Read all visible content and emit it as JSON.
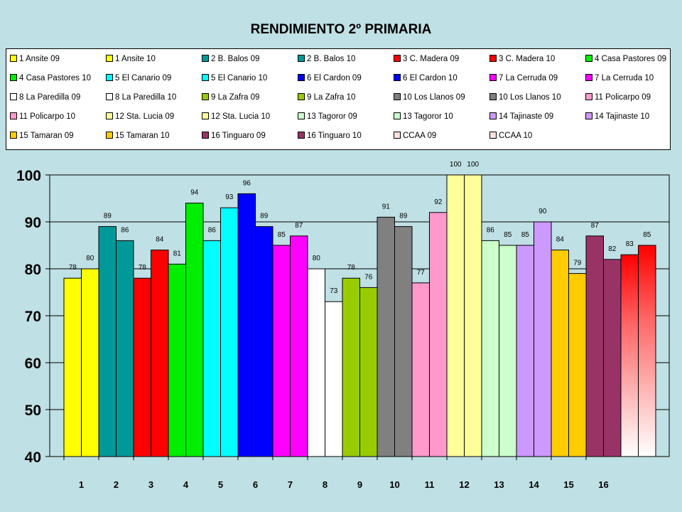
{
  "chart_data": {
    "type": "bar",
    "title": "RENDIMIENTO 2º PRIMARIA",
    "xlabel": "",
    "ylabel": "",
    "ylim": [
      40,
      100
    ],
    "yticks": [
      40,
      50,
      60,
      70,
      80,
      90,
      100
    ],
    "grid": true,
    "legend_position": "top",
    "categories": [
      "1",
      "2",
      "3",
      "4",
      "5",
      "6",
      "7",
      "8",
      "9",
      "10",
      "11",
      "12",
      "13",
      "14",
      "15",
      "16"
    ],
    "series": [
      {
        "name": "1 Ansite 09",
        "category": "1",
        "value": 78,
        "color": "#ffff00"
      },
      {
        "name": "1 Ansite 10",
        "category": "1",
        "value": 80,
        "color": "#ffff00"
      },
      {
        "name": "2 B. Balos 09",
        "category": "2",
        "value": 89,
        "color": "#009999"
      },
      {
        "name": "2 B. Balos 10",
        "category": "2",
        "value": 86,
        "color": "#009999"
      },
      {
        "name": "3 C. Madera 09",
        "category": "3",
        "value": 78,
        "color": "#ff0000"
      },
      {
        "name": "3 C. Madera 10",
        "category": "3",
        "value": 84,
        "color": "#ff0000"
      },
      {
        "name": "4 Casa Pastores 09",
        "category": "4",
        "value": 81,
        "color": "#00ee00"
      },
      {
        "name": "4 Casa Pastores 10",
        "category": "4",
        "value": 94,
        "color": "#00ee00"
      },
      {
        "name": "5 El Canario 09",
        "category": "5",
        "value": 86,
        "color": "#00ffff"
      },
      {
        "name": "5 El Canario 10",
        "category": "5",
        "value": 93,
        "color": "#00ffff"
      },
      {
        "name": "6 El Cardon 09",
        "category": "6",
        "value": 96,
        "color": "#0000ff"
      },
      {
        "name": "6 El Cardon 10",
        "category": "6",
        "value": 89,
        "color": "#0000ff"
      },
      {
        "name": "7 La Cerruda 09",
        "category": "7",
        "value": 85,
        "color": "#ff00ff"
      },
      {
        "name": "7 La Cerruda 10",
        "category": "7",
        "value": 87,
        "color": "#ff00ff"
      },
      {
        "name": "8 La Paredilla 09",
        "category": "8",
        "value": 80,
        "color": "#ffffff"
      },
      {
        "name": "8 La Paredilla 10",
        "category": "8",
        "value": 73,
        "color": "#ffffff"
      },
      {
        "name": "9 La Zafra 09",
        "category": "9",
        "value": 78,
        "color": "#99cc00"
      },
      {
        "name": "9 La Zafra 10",
        "category": "9",
        "value": 76,
        "color": "#99cc00"
      },
      {
        "name": "10 Los Llanos 09",
        "category": "10",
        "value": 91,
        "color": "#808080"
      },
      {
        "name": "10 Los Llanos 10",
        "category": "10",
        "value": 89,
        "color": "#808080"
      },
      {
        "name": "11 Policarpo 09",
        "category": "11",
        "value": 77,
        "color": "#ff99cc"
      },
      {
        "name": "11 Policarpo 10",
        "category": "11",
        "value": 92,
        "color": "#ff99cc"
      },
      {
        "name": "12 Sta. Lucia 09",
        "category": "12",
        "value": 100,
        "color": "#ffff99"
      },
      {
        "name": "12 Sta. Lucia 10",
        "category": "12",
        "value": 100,
        "color": "#ffff99"
      },
      {
        "name": "13 Tagoror 09",
        "category": "13",
        "value": 86,
        "color": "#ccffcc"
      },
      {
        "name": "13 Tagoror 10",
        "category": "13",
        "value": 85,
        "color": "#ccffcc"
      },
      {
        "name": "14 Tajinaste 09",
        "category": "14",
        "value": 85,
        "color": "#cc99ff"
      },
      {
        "name": "14 Tajinaste 10",
        "category": "14",
        "value": 90,
        "color": "#cc99ff"
      },
      {
        "name": "15 Tamaran 09",
        "category": "15",
        "value": 84,
        "color": "#ffcc00"
      },
      {
        "name": "15 Tamaran 10",
        "category": "15",
        "value": 79,
        "color": "#ffcc00"
      },
      {
        "name": "16 Tinguaro 09",
        "category": "16",
        "value": 87,
        "color": "#993366"
      },
      {
        "name": "16 Tinguaro 10",
        "category": "16",
        "value": 82,
        "color": "#993366"
      },
      {
        "name": "CCAA 09",
        "category": "",
        "value": 83,
        "color": "#ffe0e0"
      },
      {
        "name": "CCAA 10",
        "category": "",
        "value": 85,
        "color": "#ffe0e0"
      }
    ]
  }
}
